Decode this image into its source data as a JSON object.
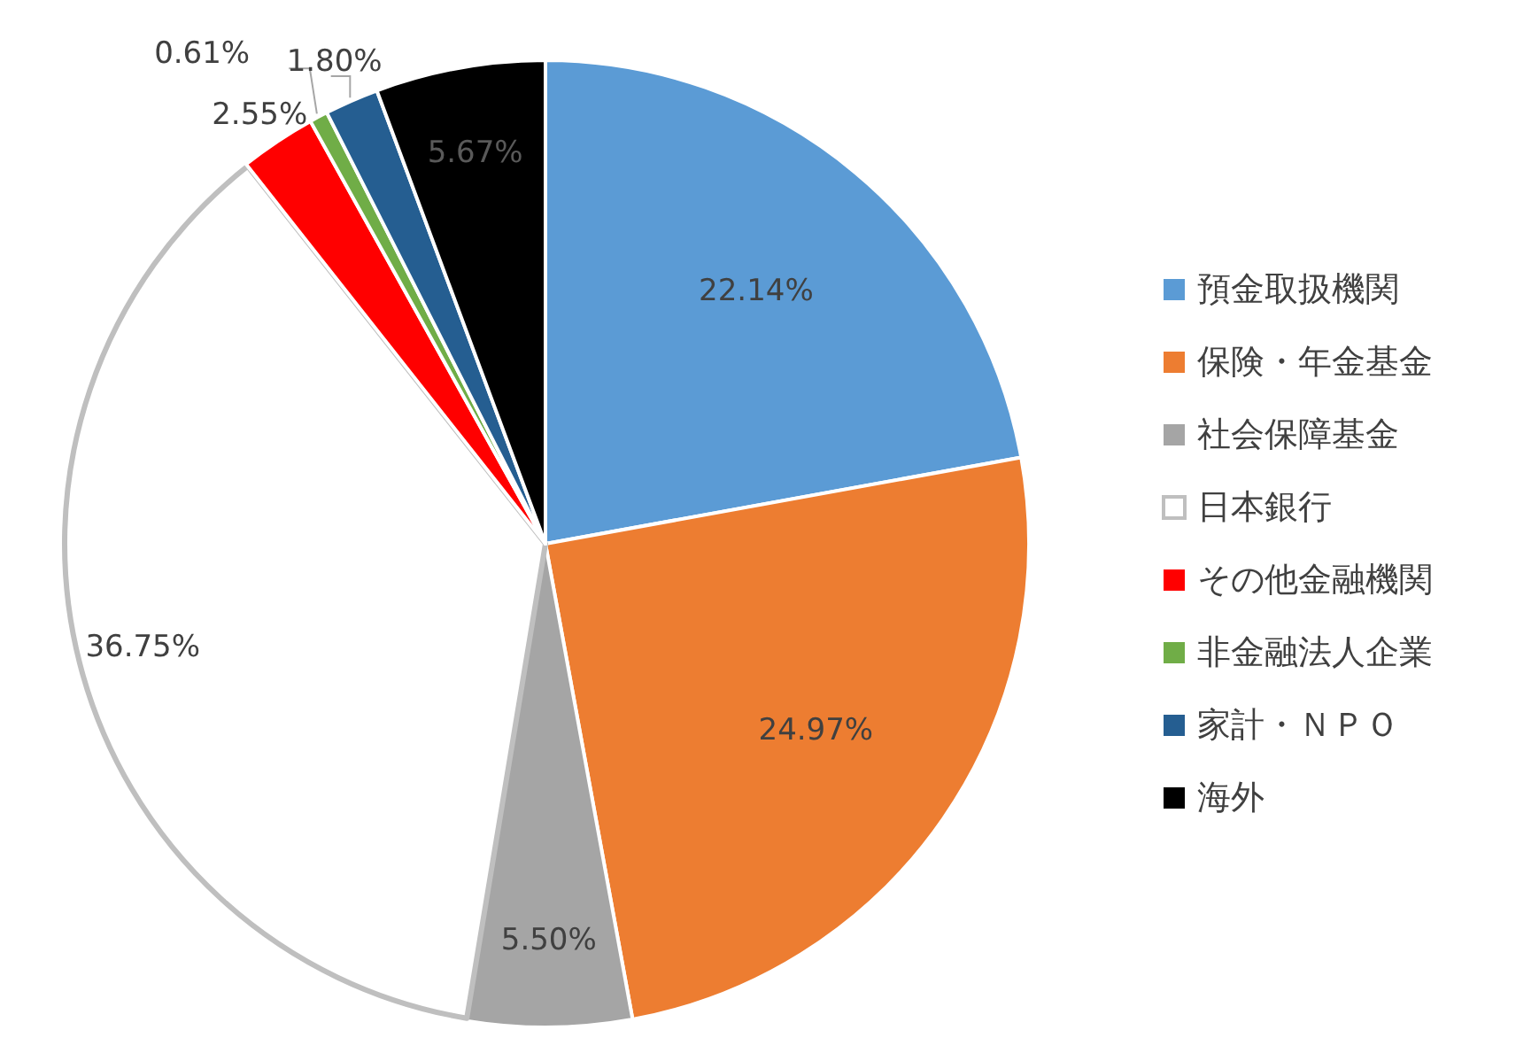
{
  "chart_data": {
    "type": "pie",
    "categories": [
      "預金取扱機関",
      "保険・年金基金",
      "社会保障基金",
      "日本銀行",
      "その他金融機関",
      "非金融法人企業",
      "家計・ＮＰＯ",
      "海外"
    ],
    "values": [
      22.14,
      24.97,
      5.5,
      36.75,
      2.55,
      0.61,
      1.8,
      5.67
    ],
    "colors": [
      "#5b9bd5",
      "#ed7d31",
      "#a5a5a5",
      "#ffffff",
      "#ff0000",
      "#70ad47",
      "#255e91",
      "#000000"
    ],
    "value_labels": [
      "22.14%",
      "24.97%",
      "5.50%",
      "36.75%",
      "2.55%",
      "0.61%",
      "1.80%",
      "5.67%"
    ],
    "legend": "right"
  }
}
